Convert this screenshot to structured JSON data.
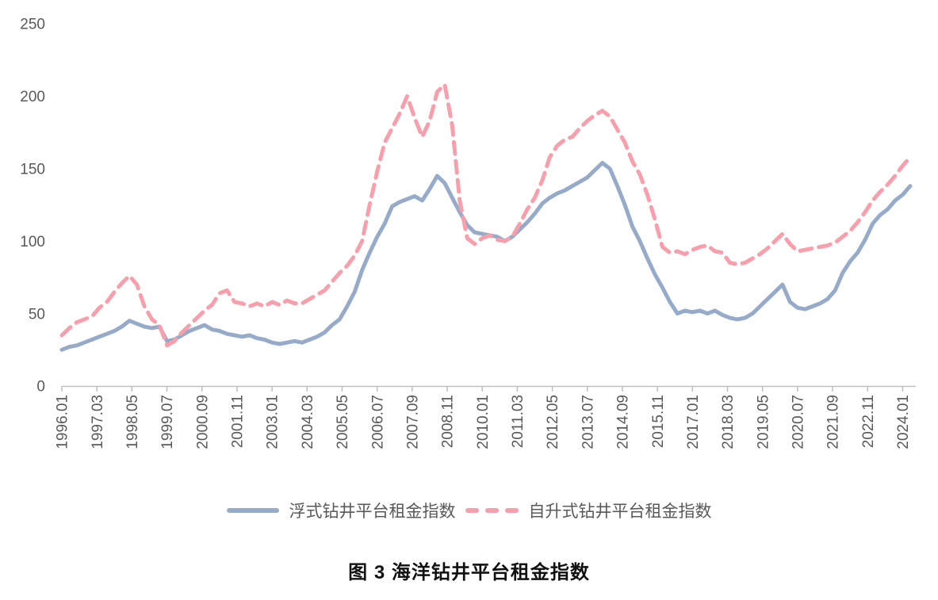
{
  "figure": {
    "caption": "图 3 海洋钻井平台租金指数"
  },
  "legend": {
    "floating_label": "浮式钻井平台租金指数",
    "jackup_label": "自升式钻井平台租金指数"
  },
  "colors": {
    "floating_series": "#96AACA",
    "jackup_series": "#F89FAB",
    "axis_line": "#BFBFBF",
    "tick_label": "#595959",
    "title_text": "#111111"
  },
  "chart_data": {
    "type": "line",
    "title": "图 3 海洋钻井平台租金指数",
    "xlabel": "",
    "ylabel": "",
    "ylim": [
      0,
      250
    ],
    "y_ticks": [
      0,
      50,
      100,
      150,
      200,
      250
    ],
    "grid": false,
    "legend_position": "bottom",
    "x_start": "1996.01",
    "x_point_interval_months": 3,
    "x_tick_interval_months": 14,
    "x_tick_labels": [
      "1996.01",
      "1997.03",
      "1998.05",
      "1999.07",
      "2000.09",
      "2001.11",
      "2003.01",
      "2004.03",
      "2005.05",
      "2006.07",
      "2007.09",
      "2008.11",
      "2010.01",
      "2011.03",
      "2012.05",
      "2013.07",
      "2014.09",
      "2015.11",
      "2017.01",
      "2018.03",
      "2019.05",
      "2020.07",
      "2021.09",
      "2022.11",
      "2024.01"
    ],
    "series": [
      {
        "name": "浮式钻井平台租金指数",
        "style": "solid",
        "color": "#96AACA",
        "values": [
          25,
          27,
          28,
          30,
          32,
          34,
          36,
          38,
          41,
          45,
          43,
          41,
          40,
          41,
          31,
          32,
          35,
          38,
          40,
          42,
          39,
          38,
          36,
          35,
          34,
          35,
          33,
          32,
          30,
          29,
          30,
          31,
          30,
          32,
          34,
          37,
          42,
          46,
          55,
          65,
          80,
          92,
          103,
          112,
          124,
          127,
          129,
          131,
          128,
          136,
          145,
          140,
          130,
          120,
          111,
          106,
          105,
          104,
          103,
          100,
          103,
          108,
          113,
          119,
          126,
          130,
          133,
          135,
          138,
          141,
          144,
          149,
          154,
          150,
          138,
          125,
          110,
          100,
          88,
          77,
          68,
          58,
          50,
          52,
          51,
          52,
          50,
          52,
          49,
          47,
          46,
          47,
          50,
          55,
          60,
          65,
          70,
          58,
          54,
          53,
          55,
          57,
          60,
          66,
          78,
          86,
          92,
          101,
          112,
          118,
          122,
          128,
          132,
          138
        ]
      },
      {
        "name": "自升式钻井平台租金指数",
        "style": "dashed",
        "color": "#F89FAB",
        "values": [
          35,
          40,
          44,
          46,
          48,
          54,
          58,
          65,
          71,
          76,
          70,
          55,
          46,
          42,
          28,
          31,
          37,
          42,
          47,
          52,
          56,
          64,
          66,
          58,
          57,
          55,
          57,
          55,
          58,
          56,
          59,
          57,
          57,
          60,
          63,
          66,
          72,
          78,
          83,
          90,
          100,
          125,
          148,
          168,
          178,
          188,
          200,
          185,
          172,
          183,
          203,
          208,
          180,
          128,
          102,
          98,
          102,
          104,
          101,
          100,
          103,
          112,
          122,
          130,
          142,
          158,
          166,
          170,
          172,
          178,
          183,
          187,
          190,
          186,
          177,
          168,
          155,
          146,
          132,
          115,
          96,
          92,
          93,
          91,
          94,
          96,
          97,
          93,
          92,
          85,
          84,
          85,
          88,
          91,
          95,
          100,
          105,
          98,
          93,
          94,
          95,
          96,
          97,
          99,
          103,
          107,
          113,
          120,
          128,
          134,
          139,
          145,
          152,
          158
        ]
      }
    ]
  }
}
